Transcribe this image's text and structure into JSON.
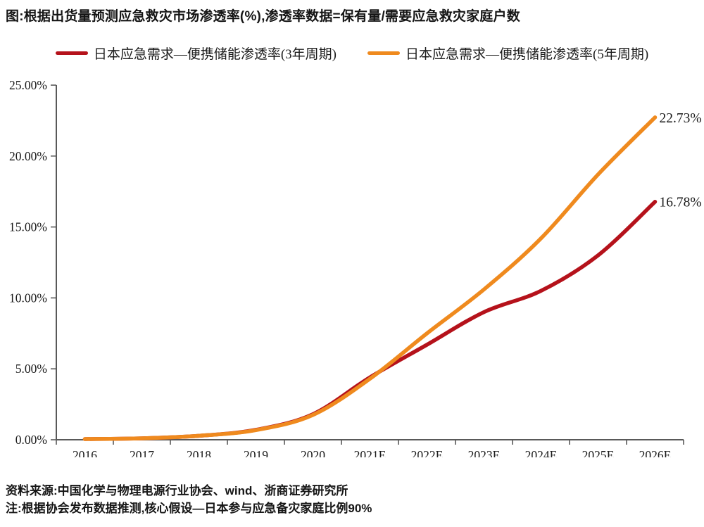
{
  "title": "图:根据出货量预测应急救灾市场渗透率(%),渗透率数据=保有量/需要应急救灾家庭户数",
  "legend": [
    {
      "key": "3yr",
      "label": "日本应急需求—便携储能渗透率(3年周期)",
      "color": "#B5121B"
    },
    {
      "key": "5yr",
      "label": "日本应急需求—便携储能渗透率(5年周期)",
      "color": "#EF8A1E"
    }
  ],
  "footer": {
    "source": "资料来源:中国化学与物理电源行业协会、wind、浙商证券研究所",
    "note": "注:根据协会发布数据推测,核心假设—日本参与应急备灾家庭比例90%"
  },
  "colors": {
    "axis": "#595959",
    "text": "#1a1a1a",
    "red_series": "#B5121B",
    "orange_series": "#EF8A1E"
  },
  "chart_data": {
    "type": "line",
    "categories": [
      "2016",
      "2017",
      "2018",
      "2019",
      "2020",
      "2021E",
      "2022E",
      "2023E",
      "2024E",
      "2025E",
      "2026E"
    ],
    "series": [
      {
        "key": "3yr",
        "name": "日本应急需求—便携储能渗透率(3年周期)",
        "color": "#B5121B",
        "values": [
          0.03,
          0.1,
          0.28,
          0.7,
          1.8,
          4.4,
          6.7,
          9.0,
          10.5,
          13.0,
          16.78
        ],
        "end_label": "16.78%"
      },
      {
        "key": "5yr",
        "name": "日本应急需求—便携储能渗透率(5年周期)",
        "color": "#EF8A1E",
        "values": [
          0.03,
          0.1,
          0.28,
          0.68,
          1.75,
          4.3,
          7.5,
          10.6,
          14.2,
          18.7,
          22.73
        ],
        "end_label": "22.73%"
      }
    ],
    "ylim": [
      0,
      25
    ],
    "ytick_step": 5,
    "yticks": [
      "0.00%",
      "5.00%",
      "10.00%",
      "15.00%",
      "20.00%",
      "25.00%"
    ],
    "grid": false,
    "legend_position": "top"
  }
}
